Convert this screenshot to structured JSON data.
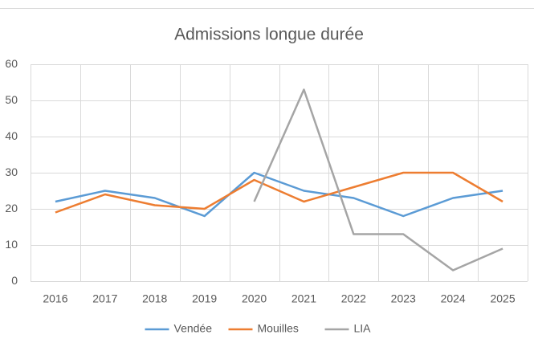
{
  "chart_data": {
    "type": "line",
    "title": "Admissions longue durée",
    "categories": [
      "2016",
      "2017",
      "2018",
      "2019",
      "2020",
      "2021",
      "2022",
      "2023",
      "2024",
      "2025"
    ],
    "series": [
      {
        "name": "Vendée",
        "color": "#5b9bd5",
        "values": [
          22,
          25,
          23,
          18,
          30,
          25,
          23,
          18,
          23,
          25
        ]
      },
      {
        "name": "Mouilles",
        "color": "#ed7d31",
        "values": [
          19,
          24,
          21,
          20,
          28,
          22,
          26,
          30,
          30,
          22
        ]
      },
      {
        "name": "LIA",
        "color": "#a5a5a5",
        "values": [
          null,
          null,
          null,
          null,
          22,
          53,
          13,
          13,
          3,
          9
        ]
      }
    ],
    "ylim": [
      0,
      60
    ],
    "yticks": [
      0,
      10,
      20,
      30,
      40,
      50,
      60
    ],
    "grid": true,
    "legend": "bottom"
  }
}
